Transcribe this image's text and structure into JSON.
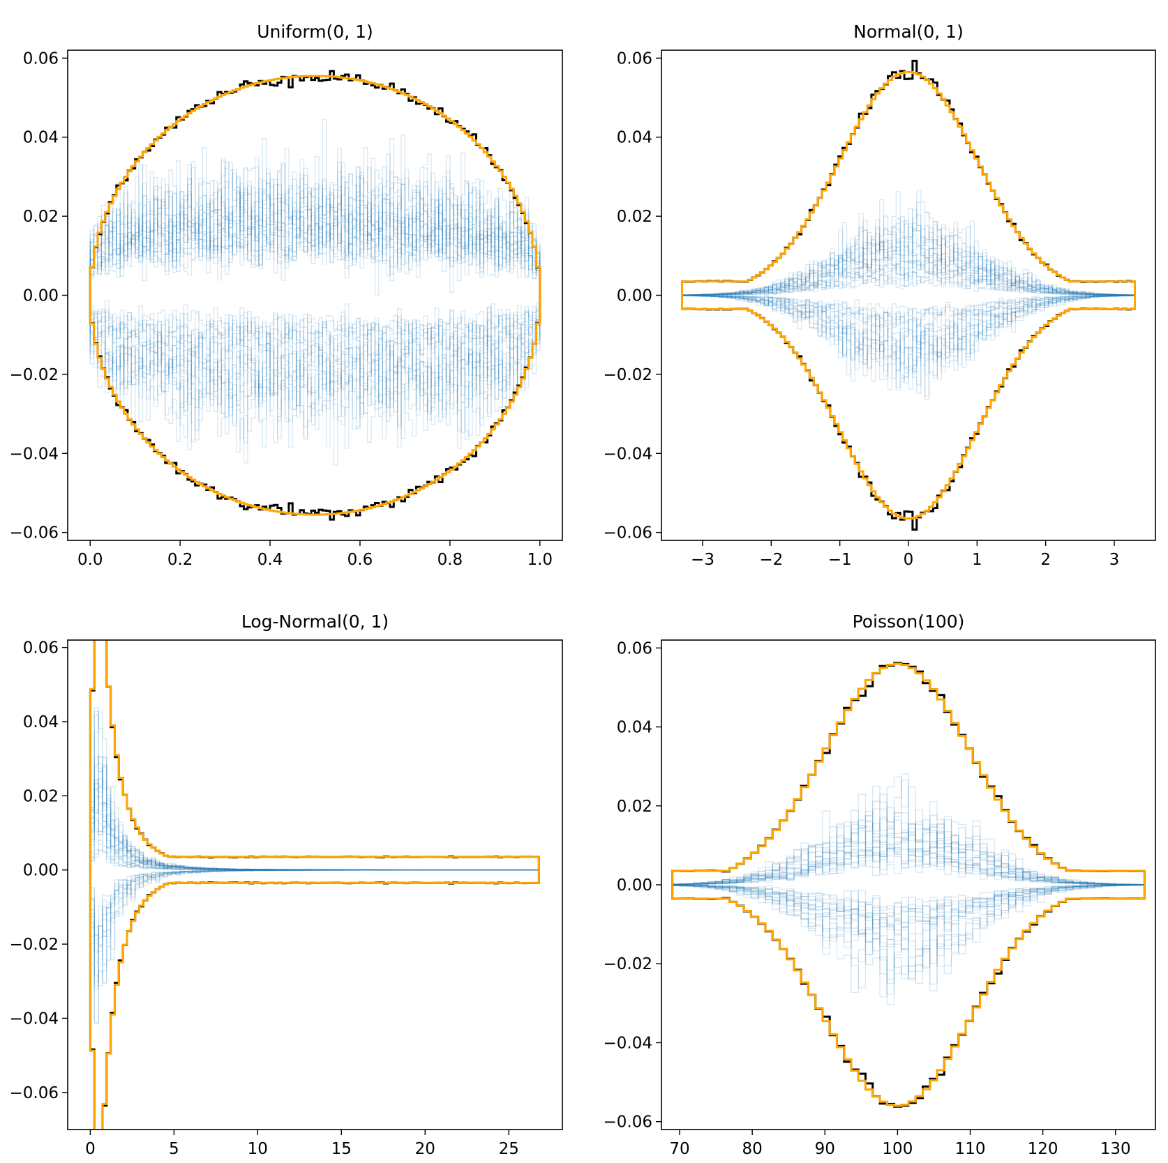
{
  "chart_data": [
    {
      "type": "histogram-envelope",
      "title": "Uniform(0, 1)",
      "xlabel": "",
      "ylabel": "",
      "xlim": [
        -0.05,
        1.05
      ],
      "ylim": [
        -0.062,
        0.062
      ],
      "xticks": [
        0.0,
        0.2,
        0.4,
        0.6,
        0.8,
        1.0
      ],
      "xtick_labels": [
        "0.0",
        "0.2",
        "0.4",
        "0.6",
        "0.8",
        "1.0"
      ],
      "yticks": [
        -0.06,
        -0.04,
        -0.02,
        0.0,
        0.02,
        0.04,
        0.06
      ],
      "ytick_labels": [
        "−0.06",
        "−0.04",
        "−0.02",
        "0.00",
        "0.02",
        "0.04",
        "0.06"
      ],
      "distribution": "uniform",
      "support": [
        0,
        1
      ],
      "bins": 120,
      "peak": 0.0555,
      "edge_value": 0.004,
      "sample_spread": 0.028,
      "n_samples": 40
    },
    {
      "type": "histogram-envelope",
      "title": "Normal(0, 1)",
      "xlabel": "",
      "ylabel": "",
      "xlim": [
        -3.6,
        3.6
      ],
      "ylim": [
        -0.062,
        0.062
      ],
      "xticks": [
        -3,
        -2,
        -1,
        0,
        1,
        2,
        3
      ],
      "xtick_labels": [
        "−3",
        "−2",
        "−1",
        "0",
        "1",
        "2",
        "3"
      ],
      "yticks": [
        -0.06,
        -0.04,
        -0.02,
        0.0,
        0.02,
        0.04,
        0.06
      ],
      "ytick_labels": [
        "−0.06",
        "−0.04",
        "−0.02",
        "0.00",
        "0.02",
        "0.04",
        "0.06"
      ],
      "distribution": "normal",
      "support": [
        -3.3,
        3.3
      ],
      "bins": 110,
      "peak": 0.0565,
      "sample_spread": 0.019,
      "n_samples": 40
    },
    {
      "type": "histogram-envelope",
      "title": "Log-Normal(0, 1)",
      "xlabel": "",
      "ylabel": "",
      "xlim": [
        -1.35,
        28.2
      ],
      "ylim": [
        -0.07,
        0.062
      ],
      "xticks": [
        0,
        5,
        10,
        15,
        20,
        25
      ],
      "xtick_labels": [
        "0",
        "5",
        "10",
        "15",
        "20",
        "25"
      ],
      "yticks": [
        -0.06,
        -0.04,
        -0.02,
        0.0,
        0.02,
        0.04,
        0.06
      ],
      "ytick_labels": [
        "−0.06",
        "−0.04",
        "−0.02",
        "0.00",
        "0.02",
        "0.04",
        "0.06"
      ],
      "distribution": "lognormal",
      "support": [
        0,
        26.8
      ],
      "bins": 110,
      "peak": 0.0545,
      "peak_x": 1.0,
      "sample_spread": 0.022,
      "n_samples": 40
    },
    {
      "type": "histogram-envelope",
      "title": "Poisson(100)",
      "xlabel": "",
      "ylabel": "",
      "xlim": [
        67.5,
        135.5
      ],
      "ylim": [
        -0.062,
        0.062
      ],
      "xticks": [
        70,
        80,
        90,
        100,
        110,
        120,
        130
      ],
      "xtick_labels": [
        "70",
        "80",
        "90",
        "100",
        "110",
        "120",
        "130"
      ],
      "yticks": [
        -0.06,
        -0.04,
        -0.02,
        0.0,
        0.02,
        0.04,
        0.06
      ],
      "ytick_labels": [
        "−0.06",
        "−0.04",
        "−0.02",
        "0.00",
        "0.02",
        "0.04",
        "0.06"
      ],
      "distribution": "poisson",
      "support": [
        69,
        134
      ],
      "bins": 66,
      "peak": 0.056,
      "sample_spread": 0.019,
      "n_samples": 40
    }
  ],
  "colors": {
    "envelope": "#ffa500",
    "reference": "#000000",
    "samples": "#1f77b4"
  }
}
